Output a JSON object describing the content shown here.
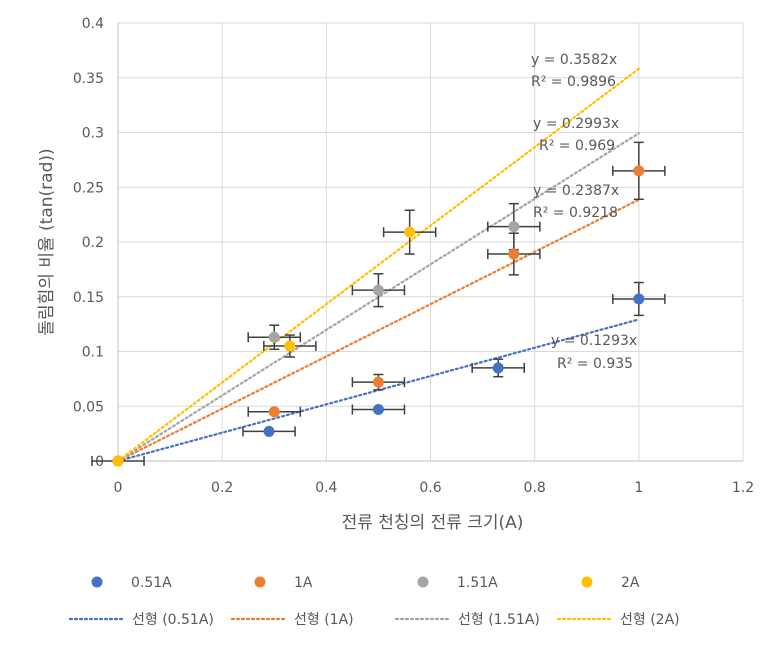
{
  "chart_data": {
    "type": "scatter",
    "xlabel": "전류 천칭의 전류 크기(A)",
    "ylabel": "돌림힘의 비율 (tan(rad))",
    "xlim": [
      0,
      1.2
    ],
    "ylim": [
      0,
      0.4
    ],
    "x_ticks": [
      "0",
      "0.2",
      "0.4",
      "0.6",
      "0.8",
      "1",
      "1.2"
    ],
    "y_ticks": [
      "0",
      "0.05",
      "0.1",
      "0.15",
      "0.2",
      "0.25",
      "0.3",
      "0.35",
      "0.4"
    ],
    "grid": true,
    "legend_position": "bottom",
    "series": [
      {
        "name": "0.51A",
        "color": "#4472C4",
        "points": [
          {
            "x": 0,
            "y": 0,
            "xerr": 0.05,
            "yerr": 0
          },
          {
            "x": 0.29,
            "y": 0.027,
            "xerr": 0.05,
            "yerr": 0
          },
          {
            "x": 0.5,
            "y": 0.047,
            "xerr": 0.05,
            "yerr": 0
          },
          {
            "x": 0.73,
            "y": 0.085,
            "xerr": 0.05,
            "yerr": 0.008
          },
          {
            "x": 1.0,
            "y": 0.148,
            "xerr": 0.05,
            "yerr": 0.015
          }
        ],
        "trend": {
          "label": "선형 (0.51A)",
          "slope": 0.1293,
          "equation": "y = 0.1293x",
          "r2": "R² = 0.935"
        }
      },
      {
        "name": "1A",
        "color": "#ED7D31",
        "points": [
          {
            "x": 0,
            "y": 0,
            "xerr": 0,
            "yerr": 0
          },
          {
            "x": 0.3,
            "y": 0.045,
            "xerr": 0.05,
            "yerr": 0
          },
          {
            "x": 0.5,
            "y": 0.072,
            "xerr": 0.05,
            "yerr": 0.007
          },
          {
            "x": 0.76,
            "y": 0.189,
            "xerr": 0.05,
            "yerr": 0.019
          },
          {
            "x": 1.0,
            "y": 0.265,
            "xerr": 0.05,
            "yerr": 0.026
          }
        ],
        "trend": {
          "label": "선형 (1A)",
          "slope": 0.2387,
          "equation": "y = 0.2387x",
          "r2": "R² = 0.9218"
        }
      },
      {
        "name": "1.51A",
        "color": "#A5A5A5",
        "points": [
          {
            "x": 0,
            "y": 0,
            "xerr": 0,
            "yerr": 0
          },
          {
            "x": 0.3,
            "y": 0.113,
            "xerr": 0.05,
            "yerr": 0.011
          },
          {
            "x": 0.5,
            "y": 0.156,
            "xerr": 0.05,
            "yerr": 0.015
          },
          {
            "x": 0.76,
            "y": 0.214,
            "xerr": 0.05,
            "yerr": 0.021
          }
        ],
        "trend": {
          "label": "선형 (1.51A)",
          "slope": 0.2993,
          "equation": "y = 0.2993x",
          "r2": "R² = 0.969"
        }
      },
      {
        "name": "2A",
        "color": "#FFC000",
        "points": [
          {
            "x": 0,
            "y": 0,
            "xerr": 0,
            "yerr": 0
          },
          {
            "x": 0.33,
            "y": 0.105,
            "xerr": 0.05,
            "yerr": 0.01
          },
          {
            "x": 0.56,
            "y": 0.209,
            "xerr": 0.05,
            "yerr": 0.02
          }
        ],
        "trend": {
          "label": "선형 (2A)",
          "slope": 0.3582,
          "equation": "y = 0.3582x",
          "r2": "R² = 0.9896"
        }
      }
    ]
  }
}
